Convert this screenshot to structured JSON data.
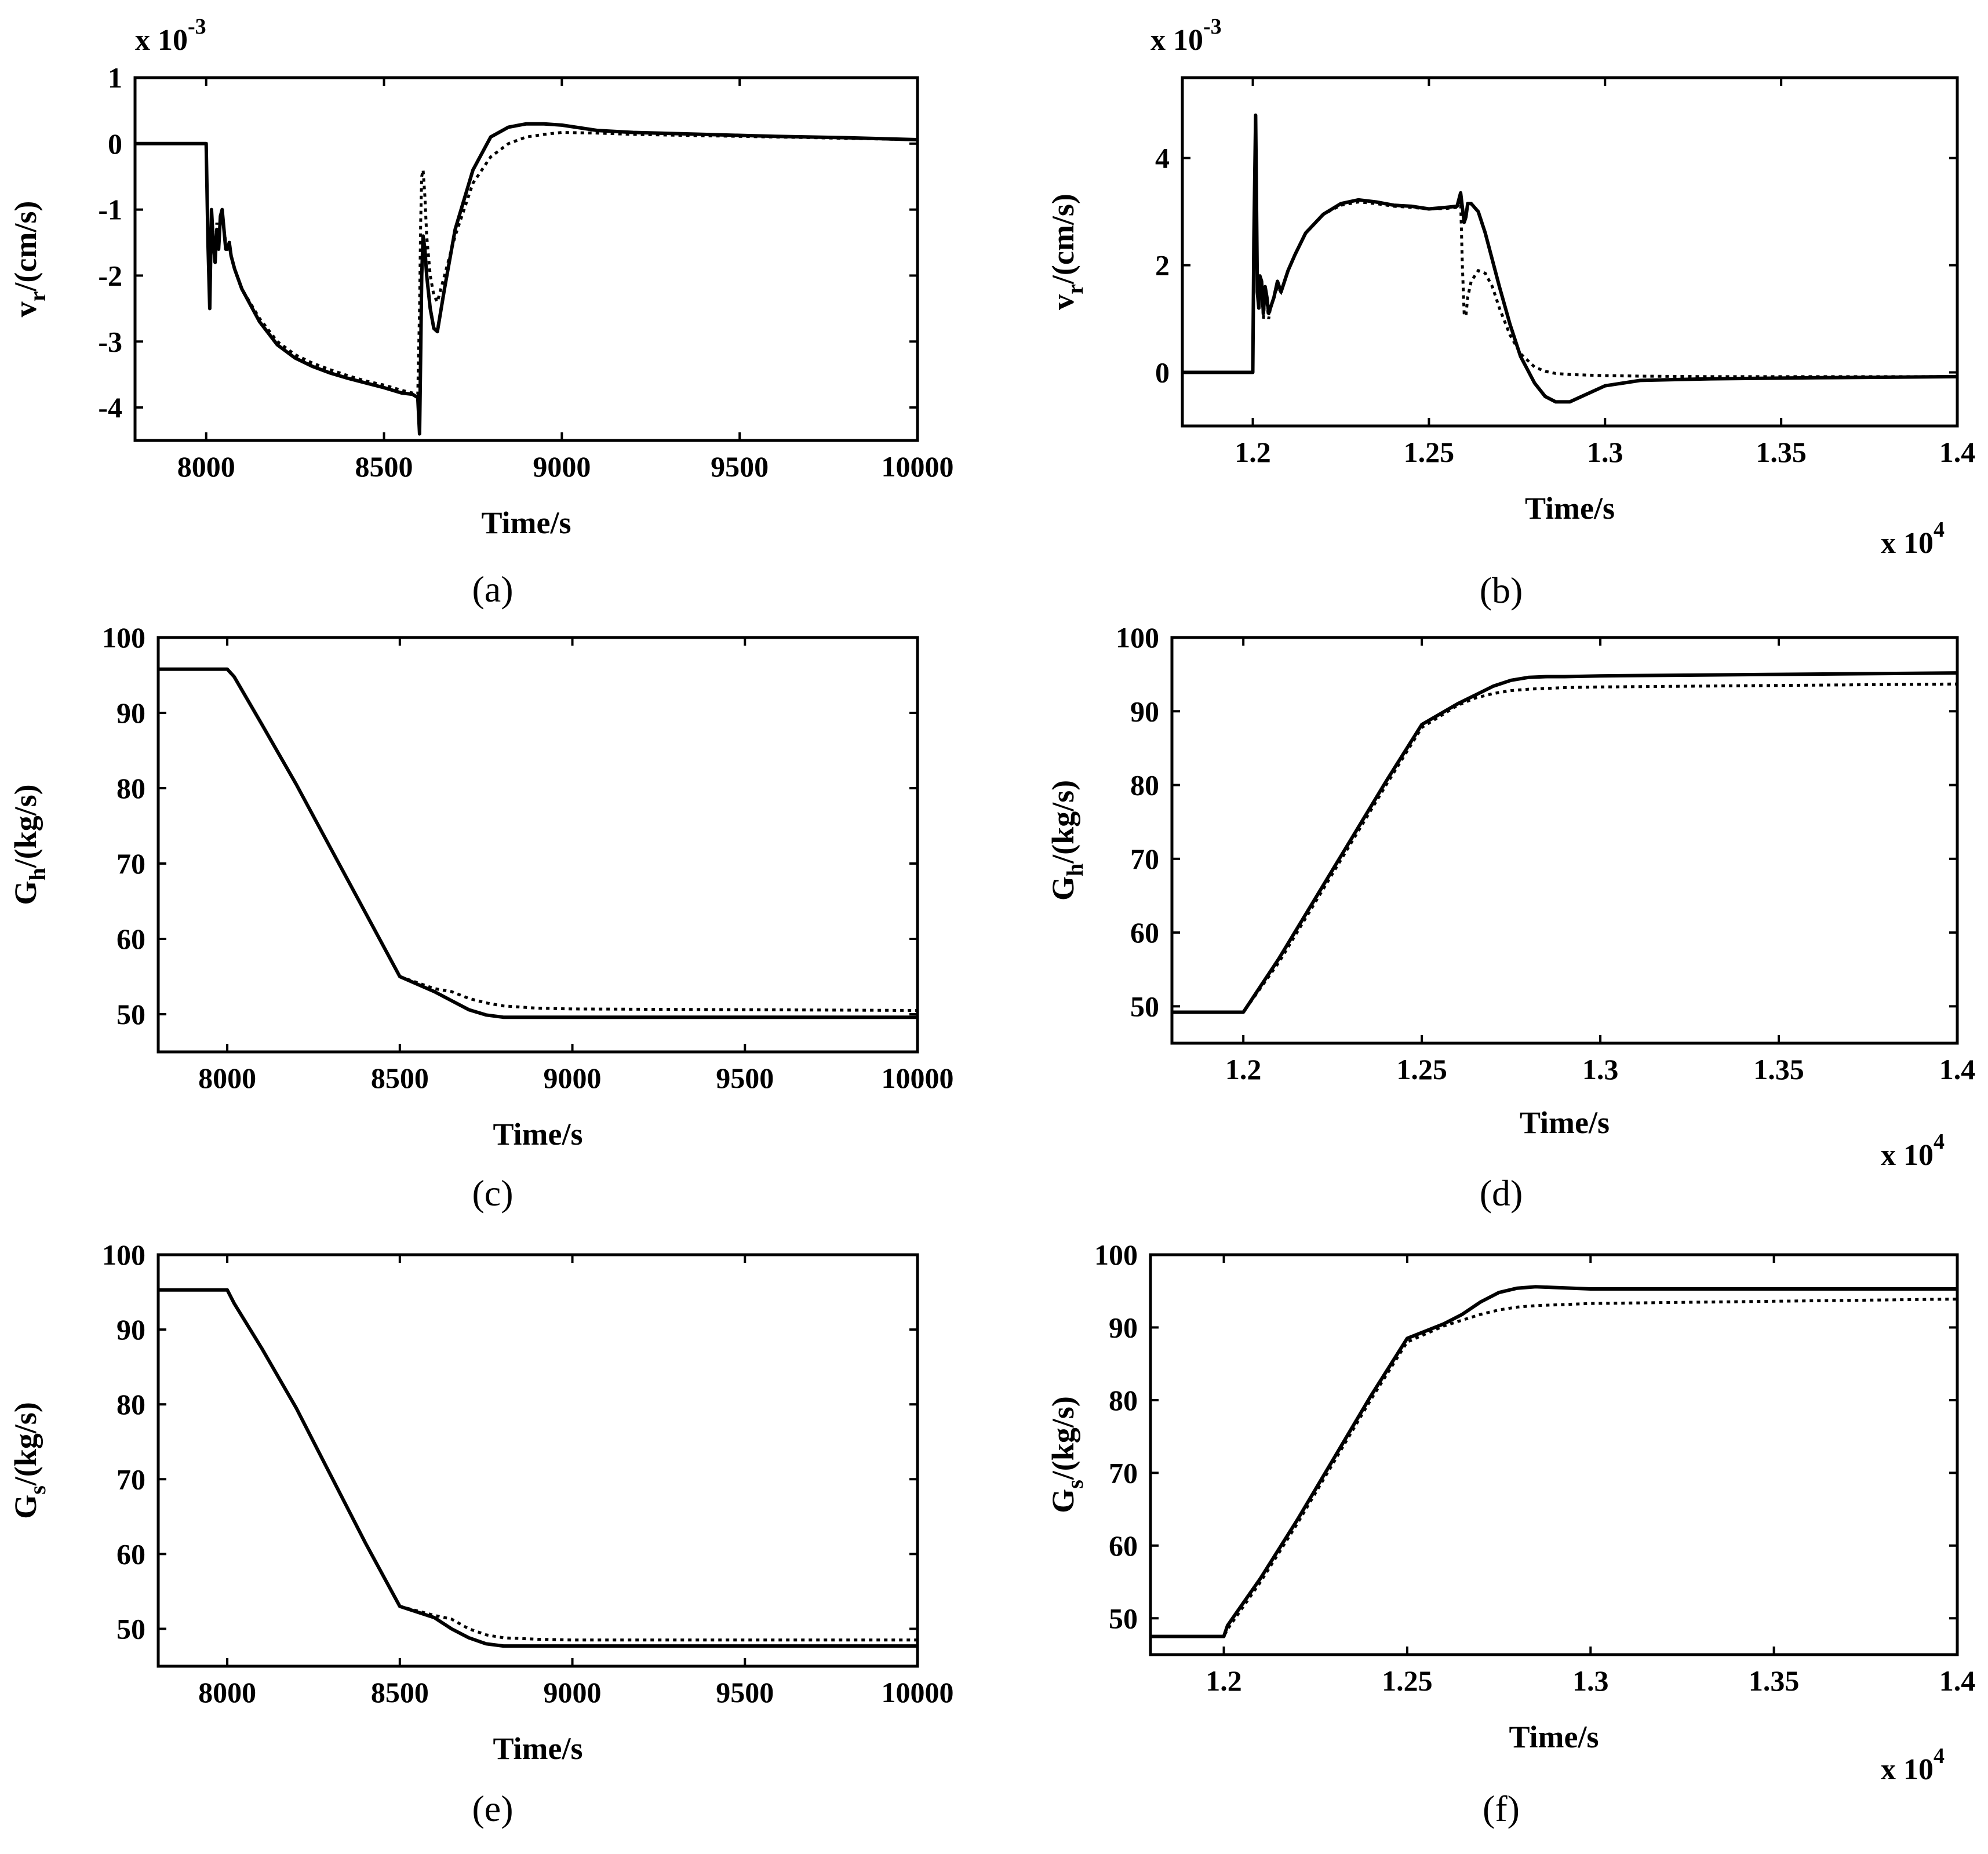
{
  "chart_data": [
    {
      "type": "line",
      "caption": "(a)",
      "title": "",
      "ylabel_main": "v",
      "ylabel_sub": "r",
      "ylabel_rest": "/(cm/s)",
      "xlabel": "Time/s",
      "y_exponent_base": "x 10",
      "y_exponent_power": "-3",
      "x_exponent_base": "",
      "x_exponent_power": "",
      "xlim": [
        7800,
        10000
      ],
      "ylim": [
        -4.5,
        1
      ],
      "xticks": [
        8000,
        8500,
        9000,
        9500,
        10000
      ],
      "xtick_labels": [
        "8000",
        "8500",
        "9000",
        "9500",
        "10000"
      ],
      "yticks": [
        -4,
        -3,
        -2,
        -1,
        0,
        1
      ],
      "ytick_labels": [
        "-4",
        "-3",
        "-2",
        "-1",
        "0",
        "1"
      ],
      "series": [
        {
          "name": "solid",
          "style": "solid",
          "x": [
            7800,
            7995,
            8000,
            8005,
            8010,
            8015,
            8020,
            8025,
            8030,
            8035,
            8040,
            8045,
            8050,
            8055,
            8060,
            8065,
            8070,
            8080,
            8100,
            8150,
            8200,
            8250,
            8300,
            8350,
            8400,
            8450,
            8500,
            8550,
            8580,
            8595,
            8600,
            8603,
            8606,
            8610,
            8615,
            8620,
            8630,
            8640,
            8650,
            8670,
            8700,
            8750,
            8800,
            8850,
            8900,
            8950,
            9000,
            9100,
            9200,
            9400,
            9600,
            9800,
            10000
          ],
          "y": [
            0,
            0,
            0,
            -1.5,
            -2.5,
            -1.0,
            -1.5,
            -1.8,
            -1.3,
            -1.6,
            -1.1,
            -1.0,
            -1.3,
            -1.6,
            -1.6,
            -1.5,
            -1.7,
            -1.9,
            -2.2,
            -2.7,
            -3.05,
            -3.25,
            -3.38,
            -3.48,
            -3.56,
            -3.63,
            -3.7,
            -3.78,
            -3.8,
            -3.85,
            -4.4,
            -3.2,
            -2.0,
            -1.4,
            -1.6,
            -2.0,
            -2.5,
            -2.8,
            -2.85,
            -2.2,
            -1.3,
            -0.4,
            0.1,
            0.25,
            0.3,
            0.3,
            0.28,
            0.2,
            0.17,
            0.14,
            0.11,
            0.09,
            0.06
          ]
        },
        {
          "name": "dotted",
          "style": "dotted",
          "x": [
            7800,
            7995,
            8000,
            8005,
            8010,
            8015,
            8020,
            8025,
            8030,
            8035,
            8040,
            8045,
            8050,
            8055,
            8060,
            8065,
            8070,
            8080,
            8100,
            8150,
            8200,
            8250,
            8300,
            8350,
            8400,
            8450,
            8500,
            8550,
            8580,
            8595,
            8600,
            8603,
            8606,
            8610,
            8615,
            8620,
            8630,
            8640,
            8650,
            8670,
            8700,
            8750,
            8800,
            8850,
            8900,
            8950,
            9000,
            9100,
            9200,
            9400,
            9600,
            9800,
            10000
          ],
          "y": [
            0,
            0,
            0,
            -1.4,
            -2.4,
            -1.0,
            -1.5,
            -1.7,
            -1.2,
            -1.5,
            -1.1,
            -1.0,
            -1.3,
            -1.5,
            -1.5,
            -1.5,
            -1.7,
            -1.9,
            -2.2,
            -2.65,
            -3.0,
            -3.2,
            -3.33,
            -3.43,
            -3.52,
            -3.6,
            -3.66,
            -3.74,
            -3.78,
            -3.8,
            -2.5,
            -1.2,
            -0.5,
            -0.4,
            -0.8,
            -1.4,
            -2.0,
            -2.3,
            -2.4,
            -2.0,
            -1.4,
            -0.6,
            -0.2,
            0.0,
            0.1,
            0.14,
            0.17,
            0.16,
            0.14,
            0.12,
            0.1,
            0.08,
            0.06
          ]
        }
      ]
    },
    {
      "type": "line",
      "caption": "(b)",
      "title": "",
      "ylabel_main": "v",
      "ylabel_sub": "r",
      "ylabel_rest": "/(cm/s)",
      "xlabel": "Time/s",
      "y_exponent_base": "x 10",
      "y_exponent_power": "-3",
      "x_exponent_base": "x 10",
      "x_exponent_power": "4",
      "xlim": [
        1.18,
        1.4
      ],
      "ylim": [
        -1,
        5.5
      ],
      "xticks": [
        1.2,
        1.25,
        1.3,
        1.35,
        1.4
      ],
      "xtick_labels": [
        "1.2",
        "1.25",
        "1.3",
        "1.35",
        "1.4"
      ],
      "yticks": [
        0,
        2,
        4
      ],
      "ytick_labels": [
        "0",
        "2",
        "4"
      ],
      "series": [
        {
          "name": "solid",
          "style": "solid",
          "x": [
            1.18,
            1.2,
            1.2003,
            1.2008,
            1.201,
            1.2013,
            1.2017,
            1.202,
            1.2025,
            1.203,
            1.2035,
            1.204,
            1.2045,
            1.205,
            1.206,
            1.207,
            1.208,
            1.21,
            1.212,
            1.215,
            1.22,
            1.225,
            1.23,
            1.235,
            1.24,
            1.245,
            1.25,
            1.255,
            1.258,
            1.259,
            1.26,
            1.2605,
            1.261,
            1.262,
            1.264,
            1.266,
            1.268,
            1.27,
            1.273,
            1.276,
            1.28,
            1.283,
            1.286,
            1.29,
            1.295,
            1.3,
            1.31,
            1.33,
            1.36,
            1.4
          ],
          "y": [
            0,
            0,
            2.5,
            4.8,
            3.5,
            1.5,
            1.2,
            1.8,
            1.7,
            1.1,
            1.6,
            1.4,
            1.1,
            1.2,
            1.4,
            1.7,
            1.5,
            1.9,
            2.2,
            2.6,
            2.95,
            3.15,
            3.22,
            3.18,
            3.12,
            3.1,
            3.05,
            3.08,
            3.1,
            3.35,
            2.8,
            2.9,
            3.15,
            3.15,
            3.0,
            2.6,
            2.1,
            1.6,
            0.9,
            0.3,
            -0.2,
            -0.45,
            -0.55,
            -0.55,
            -0.4,
            -0.25,
            -0.15,
            -0.12,
            -0.1,
            -0.08
          ]
        },
        {
          "name": "dotted",
          "style": "dotted",
          "x": [
            1.18,
            1.2,
            1.2003,
            1.2008,
            1.201,
            1.2013,
            1.2017,
            1.202,
            1.2025,
            1.203,
            1.2035,
            1.204,
            1.2045,
            1.205,
            1.206,
            1.207,
            1.208,
            1.21,
            1.212,
            1.215,
            1.22,
            1.225,
            1.23,
            1.235,
            1.24,
            1.245,
            1.25,
            1.255,
            1.258,
            1.259,
            1.2595,
            1.26,
            1.2605,
            1.261,
            1.262,
            1.264,
            1.266,
            1.268,
            1.27,
            1.273,
            1.276,
            1.28,
            1.283,
            1.286,
            1.29,
            1.295,
            1.3,
            1.31,
            1.33,
            1.36,
            1.4
          ],
          "y": [
            0,
            0,
            2.3,
            4.4,
            3.2,
            1.5,
            1.2,
            1.7,
            1.6,
            1.0,
            1.5,
            1.3,
            1.0,
            1.2,
            1.4,
            1.6,
            1.5,
            1.9,
            2.2,
            2.6,
            2.95,
            3.12,
            3.18,
            3.15,
            3.1,
            3.08,
            3.05,
            3.06,
            3.08,
            3.2,
            2.0,
            1.1,
            1.05,
            1.4,
            1.7,
            1.9,
            1.85,
            1.6,
            1.2,
            0.7,
            0.35,
            0.1,
            0.02,
            -0.02,
            -0.04,
            -0.05,
            -0.06,
            -0.07,
            -0.08,
            -0.08,
            -0.08
          ]
        }
      ]
    },
    {
      "type": "line",
      "caption": "(c)",
      "title": "",
      "ylabel_main": "G",
      "ylabel_sub": "h",
      "ylabel_rest": "/(kg/s)",
      "xlabel": "Time/s",
      "y_exponent_base": "",
      "y_exponent_power": "",
      "x_exponent_base": "",
      "x_exponent_power": "",
      "xlim": [
        7800,
        10000
      ],
      "ylim": [
        45,
        100
      ],
      "xticks": [
        8000,
        8500,
        9000,
        9500,
        10000
      ],
      "xtick_labels": [
        "8000",
        "8500",
        "9000",
        "9500",
        "10000"
      ],
      "yticks": [
        50,
        60,
        70,
        80,
        90,
        100
      ],
      "ytick_labels": [
        "50",
        "60",
        "70",
        "80",
        "90",
        "100"
      ],
      "series": [
        {
          "name": "solid",
          "style": "solid",
          "x": [
            7800,
            8000,
            8020,
            8100,
            8200,
            8300,
            8400,
            8500,
            8600,
            8650,
            8700,
            8750,
            8800,
            8900,
            9000,
            9500,
            10000
          ],
          "y": [
            95.8,
            95.8,
            94.8,
            88.5,
            80.5,
            72.0,
            63.5,
            55.0,
            53.0,
            51.8,
            50.6,
            49.9,
            49.6,
            49.6,
            49.6,
            49.6,
            49.6
          ]
        },
        {
          "name": "dotted",
          "style": "dotted",
          "x": [
            7800,
            8000,
            8020,
            8100,
            8200,
            8300,
            8400,
            8500,
            8600,
            8650,
            8700,
            8750,
            8800,
            8900,
            9000,
            9500,
            10000
          ],
          "y": [
            95.8,
            95.8,
            94.8,
            88.5,
            80.5,
            72.0,
            63.5,
            55.0,
            53.4,
            53.0,
            52.1,
            51.5,
            51.1,
            50.8,
            50.7,
            50.6,
            50.5
          ]
        }
      ]
    },
    {
      "type": "line",
      "caption": "(d)",
      "title": "",
      "ylabel_main": "G",
      "ylabel_sub": "h",
      "ylabel_rest": "/(kg/s)",
      "xlabel": "Time/s",
      "y_exponent_base": "",
      "y_exponent_power": "",
      "x_exponent_base": "x 10",
      "x_exponent_power": "4",
      "xlim": [
        1.18,
        1.4
      ],
      "ylim": [
        45,
        100
      ],
      "xticks": [
        1.2,
        1.25,
        1.3,
        1.35,
        1.4
      ],
      "xtick_labels": [
        "1.2",
        "1.25",
        "1.3",
        "1.35",
        "1.4"
      ],
      "yticks": [
        50,
        60,
        70,
        80,
        90,
        100
      ],
      "ytick_labels": [
        "50",
        "60",
        "70",
        "80",
        "90",
        "100"
      ],
      "series": [
        {
          "name": "solid",
          "style": "solid",
          "x": [
            1.18,
            1.2,
            1.21,
            1.22,
            1.23,
            1.24,
            1.25,
            1.26,
            1.265,
            1.27,
            1.275,
            1.28,
            1.285,
            1.29,
            1.3,
            1.35,
            1.4
          ],
          "y": [
            49.2,
            49.2,
            56.5,
            64.5,
            72.5,
            80.5,
            88.2,
            91.0,
            92.2,
            93.4,
            94.2,
            94.6,
            94.7,
            94.7,
            94.8,
            95.0,
            95.2
          ]
        },
        {
          "name": "dotted",
          "style": "dotted",
          "x": [
            1.18,
            1.2,
            1.21,
            1.22,
            1.23,
            1.24,
            1.25,
            1.26,
            1.265,
            1.27,
            1.275,
            1.28,
            1.285,
            1.29,
            1.3,
            1.35,
            1.4
          ],
          "y": [
            49.2,
            49.2,
            56.0,
            64.0,
            72.0,
            80.0,
            87.8,
            90.8,
            91.8,
            92.4,
            92.8,
            93.0,
            93.1,
            93.2,
            93.3,
            93.5,
            93.7
          ]
        }
      ]
    },
    {
      "type": "line",
      "caption": "(e)",
      "title": "",
      "ylabel_main": "G",
      "ylabel_sub": "s",
      "ylabel_rest": "/(kg/s)",
      "xlabel": "Time/s",
      "y_exponent_base": "",
      "y_exponent_power": "",
      "x_exponent_base": "",
      "x_exponent_power": "",
      "xlim": [
        7800,
        10000
      ],
      "ylim": [
        45,
        100
      ],
      "xticks": [
        8000,
        8500,
        9000,
        9500,
        10000
      ],
      "xtick_labels": [
        "8000",
        "8500",
        "9000",
        "9500",
        "10000"
      ],
      "yticks": [
        50,
        60,
        70,
        80,
        90,
        100
      ],
      "ytick_labels": [
        "50",
        "60",
        "70",
        "80",
        "90",
        "100"
      ],
      "series": [
        {
          "name": "solid",
          "style": "solid",
          "x": [
            7800,
            8000,
            8020,
            8100,
            8200,
            8300,
            8400,
            8500,
            8600,
            8650,
            8700,
            8750,
            8800,
            8900,
            9000,
            9500,
            10000
          ],
          "y": [
            95.3,
            95.3,
            93.5,
            87.5,
            79.5,
            70.5,
            61.5,
            53.0,
            51.5,
            50.0,
            48.8,
            48.0,
            47.7,
            47.7,
            47.7,
            47.7,
            47.7
          ]
        },
        {
          "name": "dotted",
          "style": "dotted",
          "x": [
            7800,
            8000,
            8020,
            8100,
            8200,
            8300,
            8400,
            8500,
            8600,
            8650,
            8700,
            8750,
            8800,
            8900,
            9000,
            9500,
            10000
          ],
          "y": [
            95.3,
            95.3,
            93.5,
            87.5,
            79.5,
            70.5,
            61.5,
            53.0,
            51.8,
            51.3,
            50.0,
            49.2,
            48.8,
            48.6,
            48.5,
            48.5,
            48.5
          ]
        }
      ]
    },
    {
      "type": "line",
      "caption": "(f)",
      "title": "",
      "ylabel_main": "G",
      "ylabel_sub": "s",
      "ylabel_rest": "/(kg/s)",
      "xlabel": "Time/s",
      "y_exponent_base": "",
      "y_exponent_power": "",
      "x_exponent_base": "x 10",
      "x_exponent_power": "4",
      "xlim": [
        1.18,
        1.4
      ],
      "ylim": [
        45,
        100
      ],
      "xticks": [
        1.2,
        1.25,
        1.3,
        1.35,
        1.4
      ],
      "xtick_labels": [
        "1.2",
        "1.25",
        "1.3",
        "1.35",
        "1.4"
      ],
      "yticks": [
        50,
        60,
        70,
        80,
        90,
        100
      ],
      "ytick_labels": [
        "50",
        "60",
        "70",
        "80",
        "90",
        "100"
      ],
      "series": [
        {
          "name": "solid",
          "style": "solid",
          "x": [
            1.18,
            1.2,
            1.201,
            1.21,
            1.22,
            1.23,
            1.24,
            1.25,
            1.26,
            1.265,
            1.27,
            1.275,
            1.28,
            1.285,
            1.29,
            1.3,
            1.35,
            1.4
          ],
          "y": [
            47.5,
            47.5,
            49.0,
            55.5,
            63.5,
            72.0,
            80.5,
            88.5,
            90.5,
            91.8,
            93.5,
            94.8,
            95.4,
            95.6,
            95.5,
            95.3,
            95.3,
            95.3
          ]
        },
        {
          "name": "dotted",
          "style": "dotted",
          "x": [
            1.18,
            1.2,
            1.201,
            1.21,
            1.22,
            1.23,
            1.24,
            1.25,
            1.26,
            1.265,
            1.27,
            1.275,
            1.28,
            1.285,
            1.29,
            1.3,
            1.35,
            1.4
          ],
          "y": [
            47.5,
            47.5,
            48.5,
            55.0,
            63.0,
            71.5,
            80.0,
            88.0,
            90.2,
            91.0,
            91.8,
            92.4,
            92.8,
            93.0,
            93.1,
            93.3,
            93.6,
            93.9
          ]
        }
      ]
    }
  ]
}
